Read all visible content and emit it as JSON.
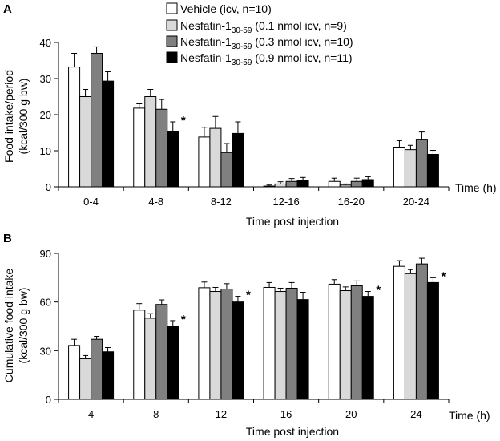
{
  "legend": [
    {
      "name": "Vehicle",
      "detail": "(icv, n=10)",
      "color": "#ffffff"
    },
    {
      "name": "Nesfatin-1",
      "sub": "30-59",
      "detail": "(0.1 nmol icv, n=9)",
      "color": "#d9d9d9"
    },
    {
      "name": "Nesfatin-1",
      "sub": "30-59",
      "detail": "(0.3 nmol icv, n=10)",
      "color": "#808080"
    },
    {
      "name": "Nesfatin-1",
      "sub": "30-59",
      "detail": "(0.9 nmol icv, n=11)",
      "color": "#000000"
    }
  ],
  "chart_data": [
    {
      "panel": "A",
      "type": "bar",
      "ylabel_line1": "Food intake/period",
      "ylabel_line2": "(kcal/300 g bw)",
      "xlabel": "Time post injection",
      "x_unit_label": "Time (h)",
      "ylim": [
        0,
        40
      ],
      "yticks": [
        "0",
        "10",
        "20",
        "30",
        "40"
      ],
      "categories": [
        "0-4",
        "4-8",
        "8-12",
        "12-16",
        "16-20",
        "20-24"
      ],
      "series": [
        {
          "name": "Vehicle",
          "values": [
            33.2,
            21.8,
            13.8,
            0.2,
            1.5,
            11.0
          ],
          "errors": [
            3.8,
            1.2,
            2.7,
            0.3,
            0.9,
            1.8
          ]
        },
        {
          "name": "Nesfatin-1 30-59 0.1 nmol",
          "values": [
            25.0,
            25.0,
            16.2,
            0.8,
            0.5,
            10.3
          ],
          "errors": [
            2.0,
            2.0,
            3.3,
            0.6,
            0.3,
            1.2
          ]
        },
        {
          "name": "Nesfatin-1 30-59 0.3 nmol",
          "values": [
            37.0,
            21.5,
            9.5,
            1.5,
            1.5,
            13.2
          ],
          "errors": [
            1.8,
            2.7,
            2.5,
            0.8,
            0.9,
            2.0
          ]
        },
        {
          "name": "Nesfatin-1 30-59 0.9 nmol",
          "values": [
            29.3,
            15.3,
            14.8,
            1.8,
            2.0,
            9.0
          ],
          "errors": [
            2.6,
            2.7,
            3.2,
            0.8,
            0.8,
            1.1
          ]
        }
      ],
      "significance": [
        {
          "category_index": 1,
          "series_index": 3,
          "label": "*"
        }
      ]
    },
    {
      "panel": "B",
      "type": "bar",
      "ylabel_line1": "Cumulative food intake",
      "ylabel_line2": "(kcal/300 g bw)",
      "xlabel": "Time post injection",
      "x_unit_label": "Time (h)",
      "ylim": [
        0,
        90
      ],
      "yticks": [
        "0",
        "30",
        "60",
        "90"
      ],
      "categories": [
        "4",
        "8",
        "12",
        "16",
        "20",
        "24"
      ],
      "series": [
        {
          "name": "Vehicle",
          "values": [
            33.2,
            55.0,
            68.8,
            69.0,
            71.0,
            82.0
          ],
          "errors": [
            3.8,
            4.0,
            3.5,
            3.0,
            2.8,
            3.5
          ]
        },
        {
          "name": "Nesfatin-1 30-59 0.1 nmol",
          "values": [
            25.0,
            50.0,
            66.5,
            66.5,
            67.0,
            77.5
          ],
          "errors": [
            2.0,
            2.8,
            2.5,
            2.0,
            2.3,
            2.5
          ]
        },
        {
          "name": "Nesfatin-1 30-59 0.3 nmol",
          "values": [
            37.0,
            58.5,
            68.0,
            68.5,
            70.0,
            83.5
          ],
          "errors": [
            1.8,
            2.8,
            3.3,
            3.5,
            3.0,
            3.5
          ]
        },
        {
          "name": "Nesfatin-1 30-59 0.9 nmol",
          "values": [
            29.3,
            45.0,
            60.0,
            61.5,
            63.5,
            72.0
          ],
          "errors": [
            2.6,
            3.5,
            3.5,
            4.5,
            3.0,
            3.0
          ]
        }
      ],
      "significance": [
        {
          "category_index": 1,
          "series_index": 3,
          "label": "*"
        },
        {
          "category_index": 2,
          "series_index": 3,
          "label": "*"
        },
        {
          "category_index": 4,
          "series_index": 3,
          "label": "*"
        },
        {
          "category_index": 5,
          "series_index": 3,
          "label": "*"
        }
      ]
    }
  ]
}
